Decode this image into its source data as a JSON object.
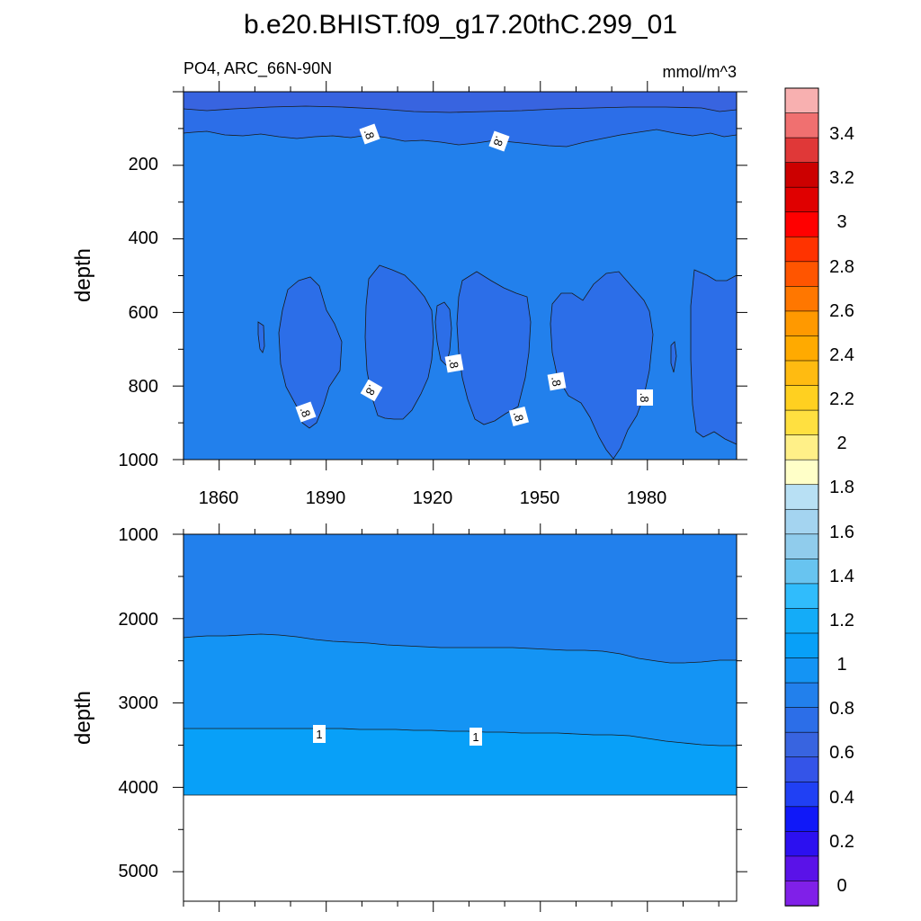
{
  "title": "b.e20.BHIST.f09_g17.20thC.299_01",
  "variable_label": "PO4, ARC_66N-90N",
  "units_label": "mmol/m^3",
  "chart_data": [
    {
      "type": "heatmap",
      "name": "upper-panel",
      "subtitle": "PO4, ARC_66N-90N",
      "units": "mmol/m^3",
      "xlabel": "",
      "ylabel": "depth",
      "xlim": [
        1850,
        2005
      ],
      "ylim": [
        1000,
        0
      ],
      "x_ticks": [
        1860,
        1890,
        1920,
        1950,
        1980
      ],
      "y_ticks": [
        200,
        400,
        600,
        800,
        1000
      ],
      "background_level": 0.85,
      "contours": [
        {
          "level": 0.6,
          "boundary_depth": [
            [
              1850,
              48
            ],
            [
              1880,
              45
            ],
            [
              1920,
              52
            ],
            [
              1950,
              50
            ],
            [
              1980,
              46
            ],
            [
              2005,
              52
            ]
          ]
        },
        {
          "level": 0.8,
          "boundary_depth": [
            [
              1850,
              115
            ],
            [
              1875,
              120
            ],
            [
              1900,
              118
            ],
            [
              1930,
              128
            ],
            [
              1950,
              115
            ],
            [
              1975,
              110
            ],
            [
              2005,
              118
            ]
          ]
        }
      ],
      "low_regions_0.8": [
        {
          "x_range": [
            1871,
            1873
          ],
          "depth_range": [
            625,
            710
          ]
        },
        {
          "x_range": [
            1877,
            1890
          ],
          "depth_range": [
            535,
            905
          ]
        },
        {
          "x_range": [
            1902,
            1921
          ],
          "depth_range": [
            470,
            890
          ]
        },
        {
          "x_range": [
            1922,
            1925
          ],
          "depth_range": [
            505,
            745
          ]
        },
        {
          "x_range": [
            1926,
            1945
          ],
          "depth_range": [
            500,
            895
          ]
        },
        {
          "x_range": [
            1953,
            1981
          ],
          "depth_range": [
            480,
            995
          ]
        },
        {
          "x_range": [
            1986,
            1987
          ],
          "depth_range": [
            680,
            770
          ]
        },
        {
          "x_range": [
            1998,
            2005
          ],
          "depth_range": [
            490,
            960
          ]
        }
      ],
      "contour_labels": [
        ".8",
        ".8",
        ".8",
        ".8",
        ".8",
        ".8",
        ".8",
        ".8"
      ]
    },
    {
      "type": "heatmap",
      "name": "lower-panel",
      "xlabel": "",
      "ylabel": "depth",
      "xlim": [
        1850,
        2005
      ],
      "ylim": [
        5350,
        1000
      ],
      "y_ticks": [
        1000,
        2000,
        3000,
        4000,
        5000
      ],
      "bands": [
        {
          "level_range": [
            0.8,
            0.9
          ],
          "top_depth": 1000,
          "bottom_boundary": [
            [
              1850,
              2230
            ],
            [
              1875,
              2190
            ],
            [
              1900,
              2280
            ],
            [
              1930,
              2350
            ],
            [
              1955,
              2370
            ],
            [
              1975,
              2420
            ],
            [
              1988,
              2520
            ],
            [
              2005,
              2500
            ]
          ]
        },
        {
          "level_range": [
            0.9,
            1.0
          ],
          "bottom_boundary": [
            [
              1850,
              3350
            ],
            [
              1890,
              3350
            ],
            [
              1930,
              3390
            ],
            [
              1960,
              3420
            ],
            [
              1980,
              3470
            ],
            [
              1990,
              3510
            ],
            [
              2005,
              3520
            ]
          ]
        },
        {
          "level_range": [
            1.0,
            1.1
          ],
          "bottom_depth": 4120
        }
      ],
      "contour_labels": [
        "1",
        "1"
      ]
    }
  ],
  "colorbar": {
    "labels": [
      "3.4",
      "3.2",
      "3",
      "2.8",
      "2.6",
      "2.4",
      "2.2",
      "2",
      "1.8",
      "1.6",
      "1.4",
      "1.2",
      "1",
      "0.8",
      "0.6",
      "0.4",
      "0.2",
      "0"
    ],
    "colors_top_to_bottom": [
      "#f8b0b0",
      "#f07070",
      "#e03838",
      "#cc0000",
      "#e00000",
      "#ff0000",
      "#ff3300",
      "#ff5500",
      "#ff7700",
      "#ff9900",
      "#ffaa00",
      "#ffbb11",
      "#ffd020",
      "#ffe040",
      "#fff088",
      "#ffffc8",
      "#b8e0f4",
      "#a4d4f0",
      "#90ccec",
      "#68c4f0",
      "#30bcfc",
      "#14acf8",
      "#08a0f8",
      "#1494f4",
      "#2280ec",
      "#2c6ee8",
      "#3864e0",
      "#3454e8",
      "#2040f4",
      "#1018f8",
      "#2c10f0",
      "#5a12e8",
      "#8020e8"
    ]
  }
}
